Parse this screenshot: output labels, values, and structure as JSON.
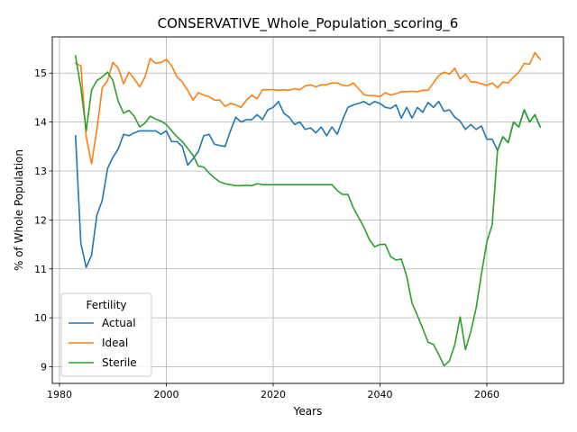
{
  "chart_data": {
    "type": "line",
    "title": "CONSERVATIVE_Whole_Population_scoring_6",
    "xlabel": "Years",
    "ylabel": "% of Whole Population",
    "xlim": [
      1980.65,
      1989.35
    ],
    "ylim": [
      8.66,
      15.74
    ],
    "xticks": [
      1980,
      2000,
      2020,
      2040,
      2060
    ],
    "yticks": [
      9,
      10,
      11,
      12,
      13,
      14,
      15
    ],
    "grid": true,
    "legend": {
      "title": "Fertility",
      "position": "lower-left"
    },
    "x": [
      1983,
      1984,
      1985,
      1986,
      1987,
      1988,
      1989,
      1990,
      1991,
      1992,
      1993,
      1994,
      1995,
      1996,
      1997,
      1998,
      1999,
      2000,
      2001,
      2002,
      2003,
      2004,
      2005,
      2006,
      2007,
      2008,
      2009,
      2010,
      2011,
      2012,
      2013,
      2014,
      2015,
      2016,
      2017,
      2018,
      2019,
      2020,
      2021,
      2022,
      2023,
      2024,
      2025,
      2026,
      2027,
      2028,
      2029,
      2030,
      2031,
      2032,
      2033,
      2034,
      2035,
      2036,
      2037,
      2038,
      2039,
      2040,
      2041,
      2042,
      2043,
      2044,
      2045,
      2046,
      2047,
      2048,
      2049,
      2050,
      2051,
      2052,
      2053,
      2054,
      2055,
      2056,
      2057,
      2058,
      2059,
      2060,
      2061,
      2062,
      2063,
      2064,
      2065,
      2066,
      2067,
      2068,
      2069,
      2070
    ],
    "series": [
      {
        "name": "Actual",
        "color": "#1f77b4",
        "values": [
          13.72,
          11.52,
          11.03,
          11.28,
          12.1,
          12.4,
          13.05,
          13.28,
          13.45,
          13.75,
          13.72,
          13.78,
          13.82,
          13.82,
          13.82,
          13.82,
          13.75,
          13.82,
          13.6,
          13.6,
          13.5,
          13.12,
          13.25,
          13.4,
          13.72,
          13.75,
          13.55,
          13.52,
          13.5,
          13.82,
          14.1,
          14.0,
          14.05,
          14.05,
          14.15,
          14.05,
          14.25,
          14.3,
          14.42,
          14.18,
          14.1,
          13.95,
          14.0,
          13.85,
          13.88,
          13.78,
          13.9,
          13.72,
          13.9,
          13.75,
          14.05,
          14.3,
          14.35,
          14.38,
          14.42,
          14.35,
          14.42,
          14.38,
          14.3,
          14.28,
          14.35,
          14.08,
          14.3,
          14.08,
          14.3,
          14.2,
          14.4,
          14.3,
          14.42,
          14.22,
          14.25,
          14.1,
          14.02,
          13.85,
          13.95,
          13.85,
          13.92,
          13.65,
          13.65,
          13.42,
          13.7,
          13.58,
          14.0,
          13.9,
          14.25,
          14.0,
          14.15,
          13.9
        ]
      },
      {
        "name": "Ideal",
        "color": "#ff7f0e",
        "values": [
          15.2,
          15.15,
          13.7,
          13.15,
          13.85,
          14.7,
          14.85,
          15.22,
          15.1,
          14.78,
          15.02,
          14.88,
          14.72,
          14.92,
          15.3,
          15.2,
          15.22,
          15.28,
          15.15,
          14.92,
          14.82,
          14.65,
          14.45,
          14.6,
          14.55,
          14.52,
          14.45,
          14.45,
          14.32,
          14.38,
          14.35,
          14.3,
          14.45,
          14.55,
          14.48,
          14.66,
          14.66,
          14.66,
          14.65,
          14.66,
          14.65,
          14.68,
          14.66,
          14.74,
          14.76,
          14.72,
          14.76,
          14.76,
          14.8,
          14.8,
          14.75,
          14.74,
          14.8,
          14.68,
          14.56,
          14.54,
          14.54,
          14.52,
          14.6,
          14.55,
          14.58,
          14.62,
          14.62,
          14.63,
          14.62,
          14.65,
          14.65,
          14.8,
          14.95,
          15.02,
          14.98,
          15.1,
          14.88,
          14.98,
          14.82,
          14.82,
          14.78,
          14.75,
          14.8,
          14.7,
          14.82,
          14.8,
          14.92,
          15.02,
          15.2,
          15.18,
          15.42,
          15.28
        ]
      },
      {
        "name": "Sterile",
        "color": "#2ca02c",
        "values": [
          15.35,
          14.7,
          13.82,
          14.65,
          14.85,
          14.92,
          15.02,
          14.85,
          14.42,
          14.18,
          14.24,
          14.12,
          13.9,
          13.98,
          14.12,
          14.06,
          14.02,
          13.95,
          13.82,
          13.7,
          13.6,
          13.46,
          13.32,
          13.1,
          13.08,
          12.96,
          12.86,
          12.78,
          12.74,
          12.72,
          12.7,
          12.7,
          12.71,
          12.7,
          12.74,
          12.72,
          12.72,
          12.72,
          12.72,
          12.72,
          12.72,
          12.72,
          12.72,
          12.72,
          12.72,
          12.72,
          12.72,
          12.72,
          12.72,
          12.6,
          12.52,
          12.52,
          12.25,
          12.05,
          11.85,
          11.6,
          11.45,
          11.5,
          11.5,
          11.25,
          11.18,
          11.2,
          10.85,
          10.3,
          10.05,
          9.78,
          9.5,
          9.46,
          9.25,
          9.02,
          9.12,
          9.45,
          10.02,
          9.35,
          9.72,
          10.2,
          10.9,
          11.55,
          11.9,
          13.42,
          13.7,
          13.58,
          14.0,
          13.9,
          14.25,
          14.0,
          14.15,
          13.9
        ]
      }
    ]
  }
}
